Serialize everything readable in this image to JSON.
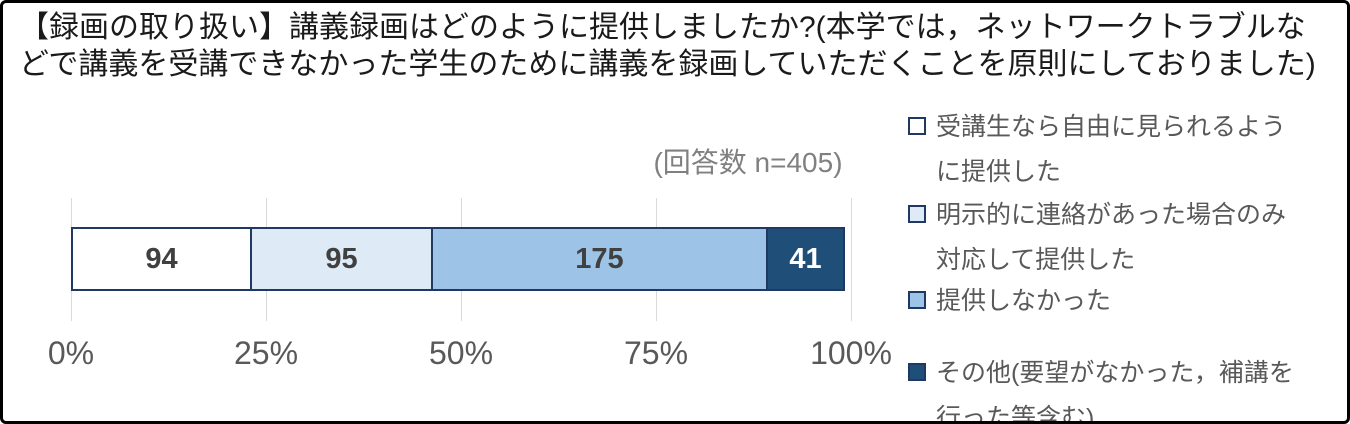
{
  "title": "【録画の取り扱い】講義録画はどのように提供しましたか?(本学では，ネットワークトラブルなどで講義を受講できなかった学生のために講義を録画していただくことを原則にしておりました)",
  "response_count_label": "(回答数 n=405)",
  "chart_data": {
    "type": "bar",
    "orientation": "horizontal-stacked",
    "title": "【録画の取り扱い】講義録画はどのように提供しましたか?(本学では，ネットワークトラブルなどで講義を受講できなかった学生のために講義を録画していただくことを原則にしておりました)",
    "subtitle": "(回答数 n=405)",
    "total": 405,
    "series": [
      {
        "name": "受講生なら自由に見られるように提供した",
        "value": 94,
        "color": "#FFFFFF",
        "value_color": "#404040"
      },
      {
        "name": "明示的に連絡があった場合のみ対応して提供した",
        "value": 95,
        "color": "#DEEBF7",
        "value_color": "#404040"
      },
      {
        "name": "提供しなかった",
        "value": 175,
        "color": "#9DC3E6",
        "value_color": "#404040"
      },
      {
        "name": "その他(要望がなかった，補講を行った等含む)",
        "value": 41,
        "color": "#1F4E79",
        "value_color": "#FFFFFF"
      }
    ],
    "x_ticks": [
      "0%",
      "25%",
      "50%",
      "75%",
      "100%"
    ],
    "xlim": [
      0,
      100
    ],
    "grid": true,
    "gridline_color": "#d9d9d9",
    "segment_border_color": "#1F3864",
    "legend_position": "right"
  },
  "legend": {
    "items": [
      {
        "lines": [
          "受講生なら自由に見られるよう",
          "に提供した"
        ],
        "color": "#FFFFFF"
      },
      {
        "lines": [
          "明示的に連絡があった場合のみ",
          "対応して提供した"
        ],
        "color": "#DEEBF7"
      },
      {
        "lines": [
          "提供しなかった"
        ],
        "color": "#9DC3E6"
      },
      {
        "lines": [
          "その他(要望がなかった，補講を",
          "行った等含む)"
        ],
        "color": "#1F4E79"
      }
    ]
  }
}
